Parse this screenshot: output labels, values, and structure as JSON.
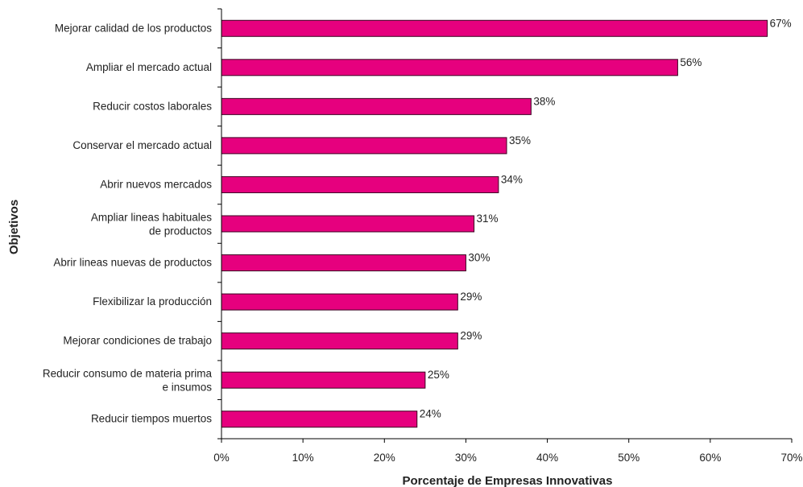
{
  "chart_data": {
    "type": "bar",
    "orientation": "horizontal",
    "categories": [
      [
        "Mejorar calidad de los productos"
      ],
      [
        "Ampliar el mercado actual"
      ],
      [
        "Reducir costos laborales"
      ],
      [
        "Conservar el mercado actual"
      ],
      [
        "Abrir nuevos mercados"
      ],
      [
        "Ampliar lineas habituales",
        "de productos"
      ],
      [
        "Abrir lineas nuevas de productos"
      ],
      [
        "Flexibilizar la producción"
      ],
      [
        "Mejorar condiciones de trabajo"
      ],
      [
        "Reducir consumo de materia prima",
        "e insumos"
      ],
      [
        "Reducir tiempos muertos"
      ]
    ],
    "values": [
      67,
      56,
      38,
      35,
      34,
      31,
      30,
      29,
      29,
      25,
      24
    ],
    "data_labels": [
      "67%",
      "56%",
      "38%",
      "35%",
      "34%",
      "31%",
      "30%",
      "29%",
      "29%",
      "25%",
      "24%"
    ],
    "xlabel": "Porcentaje de Empresas Innovativas",
    "ylabel": "Objetivos",
    "xlim": [
      0,
      70
    ],
    "xticks": [
      0,
      10,
      20,
      30,
      40,
      50,
      60,
      70
    ],
    "xtick_labels": [
      "0%",
      "10%",
      "20%",
      "30%",
      "40%",
      "50%",
      "60%",
      "70%"
    ],
    "grid": false,
    "legend": "none",
    "bar_color": "#e6007e",
    "bar_edge_color": "#3a0020",
    "axis_color": "#000000"
  }
}
